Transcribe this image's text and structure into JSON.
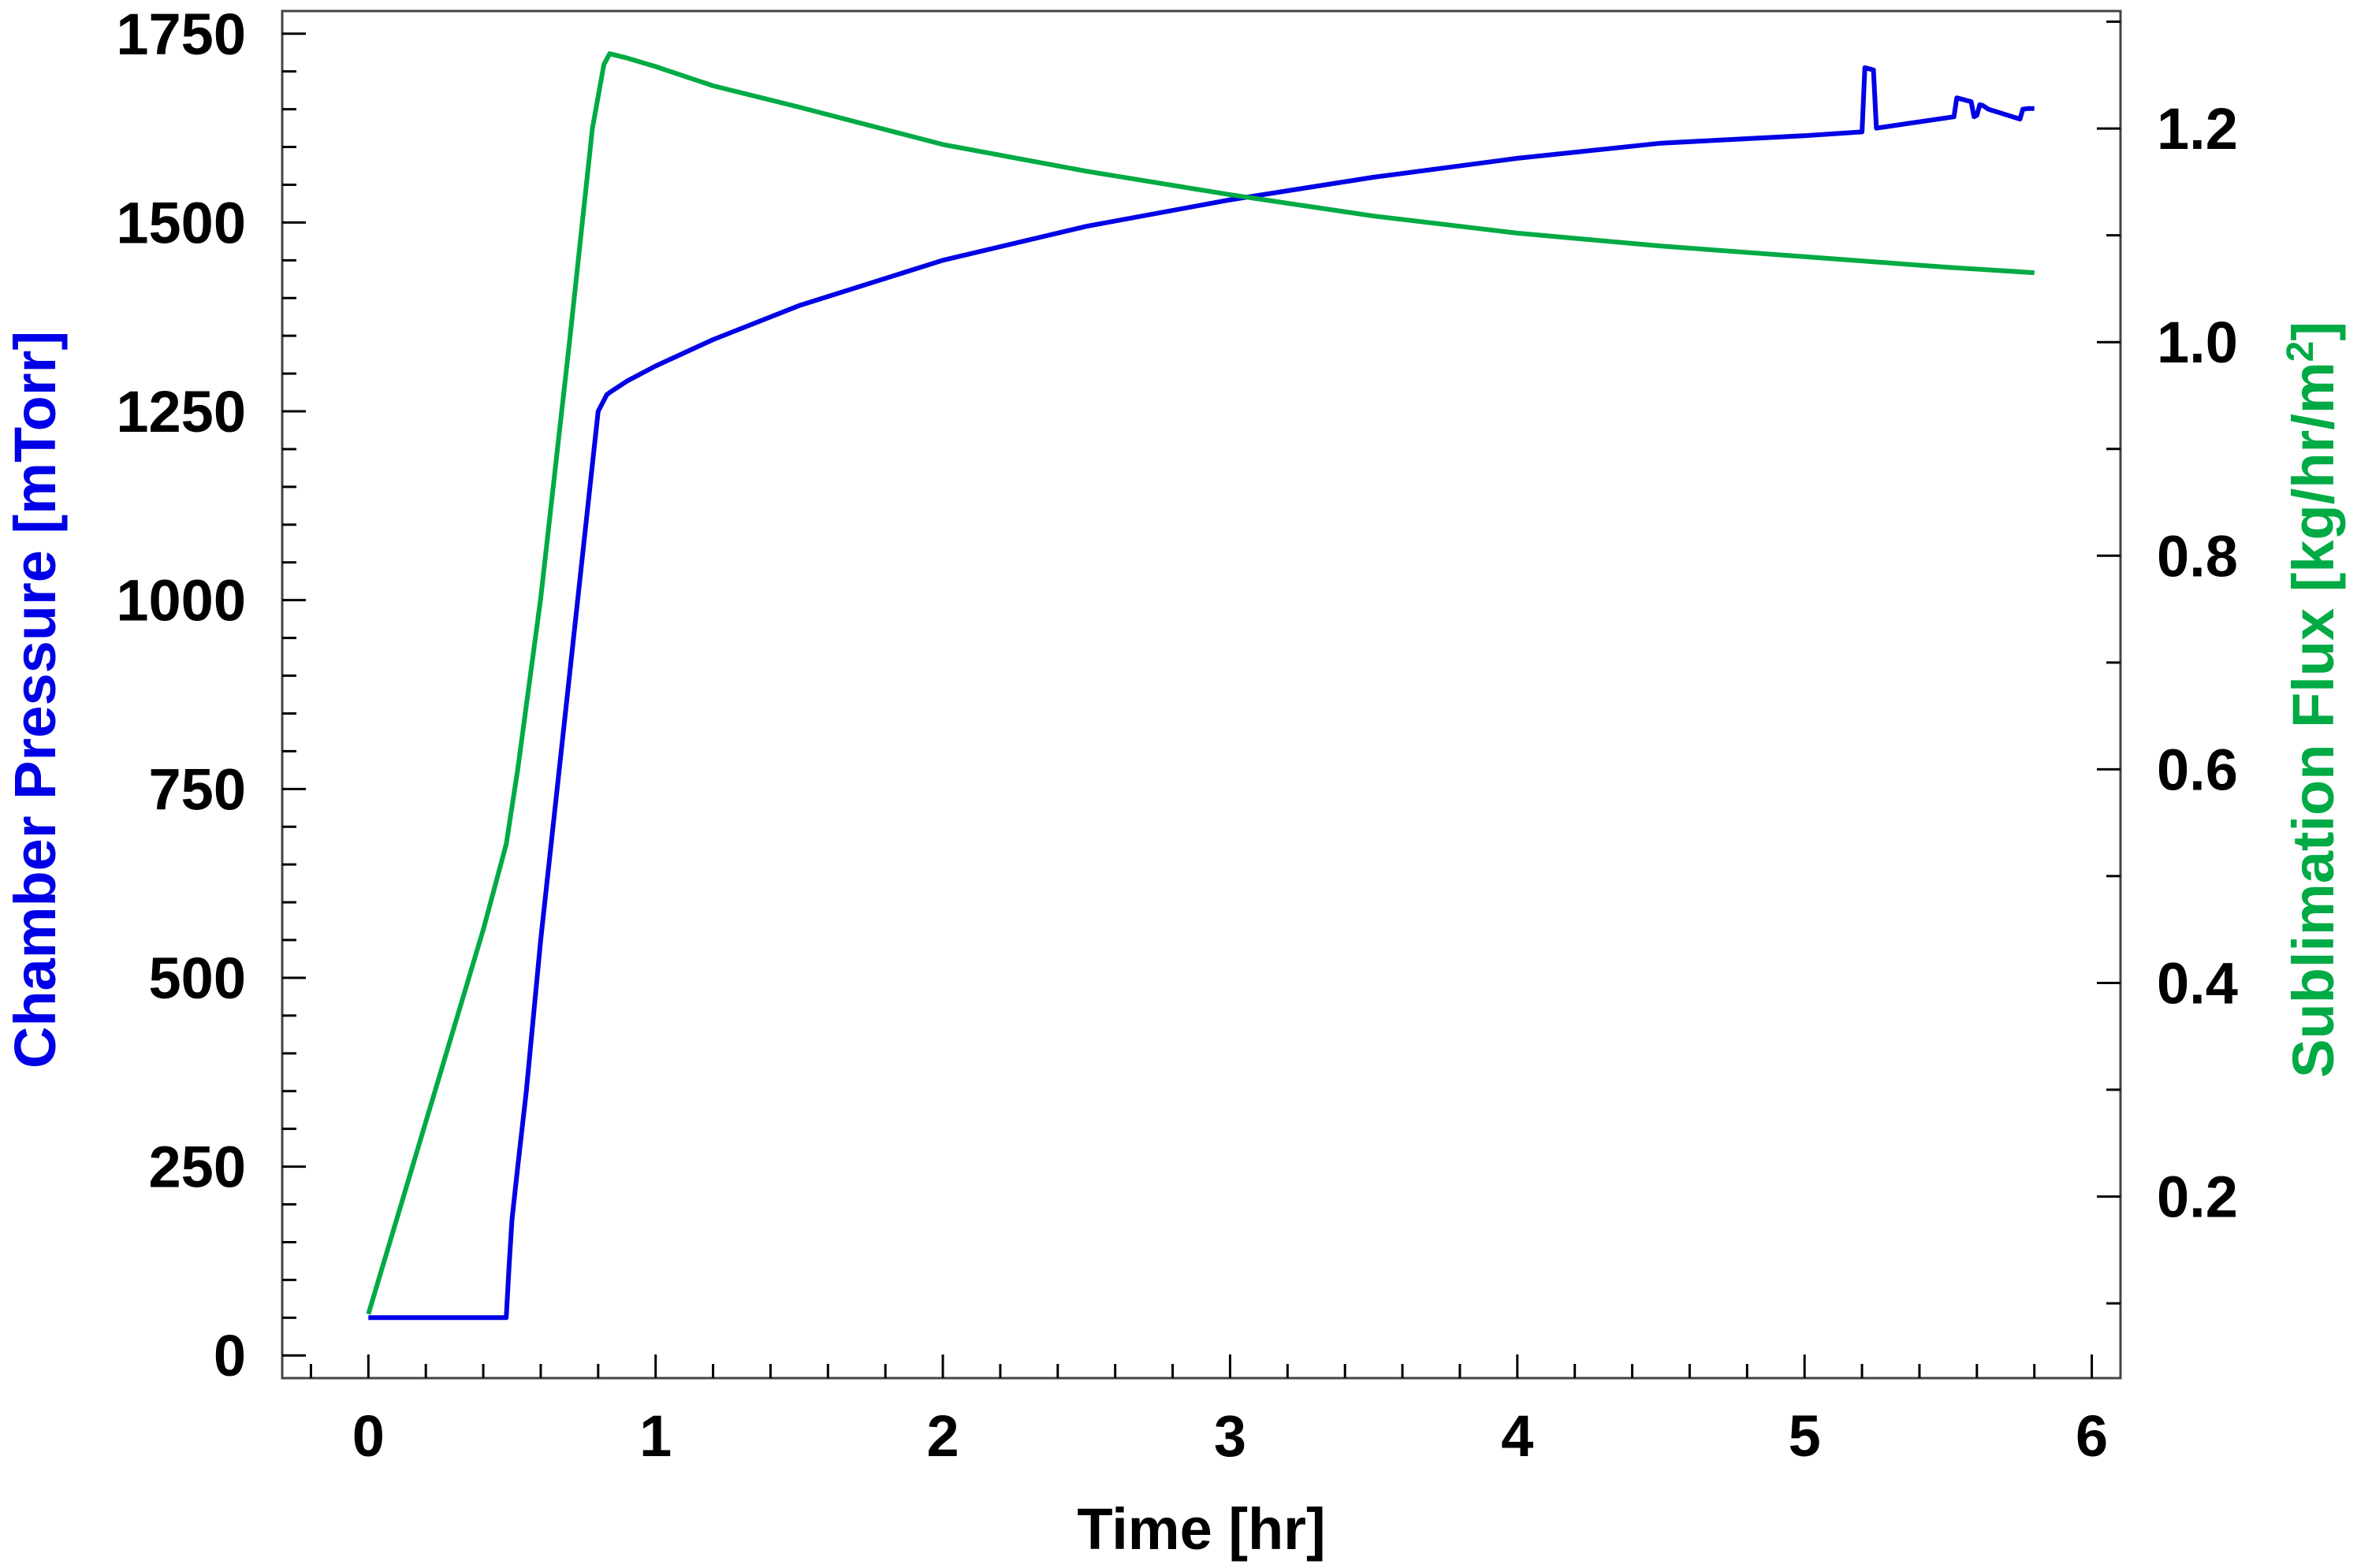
{
  "chart_data": {
    "type": "line",
    "xlabel": "Time [hr]",
    "ylabel": "Chamber Pressure [mTorr]",
    "y2label": "Sublimation Flux [kg/hr/m",
    "y2label_sup": "2",
    "y2label_close": "]",
    "xlim": [
      -0.3,
      6.1
    ],
    "ylim": [
      -30,
      1780
    ],
    "y2lim": [
      0.03,
      1.31
    ],
    "x_ticks": [
      0,
      1,
      2,
      3,
      4,
      5,
      6
    ],
    "y_ticks": [
      0,
      250,
      500,
      750,
      1000,
      1250,
      1500,
      1750
    ],
    "y2_ticks": [
      0.2,
      0.4,
      0.6,
      0.8,
      1.0,
      1.2
    ],
    "x_tick_labels": [
      "0",
      "1",
      "2",
      "3",
      "4",
      "5",
      "6"
    ],
    "y_tick_labels": [
      "0",
      "250",
      "500",
      "750",
      "1000",
      "1250",
      "1500",
      "1750"
    ],
    "y2_tick_labels": [
      "0.2",
      "0.4",
      "0.6",
      "0.8",
      "1.0",
      "1.2"
    ],
    "grid": false,
    "series": [
      {
        "axis": "left",
        "color": "#0000e6",
        "x": [
          0,
          0.48,
          0.49,
          0.5,
          0.52,
          0.55,
          0.6,
          0.7,
          0.8,
          0.83,
          0.84,
          0.9,
          1.0,
          1.2,
          1.5,
          2.0,
          2.5,
          3.0,
          3.5,
          4.0,
          4.5,
          5.0,
          5.2,
          5.21,
          5.24,
          5.25,
          5.52,
          5.53,
          5.58,
          5.59,
          5.6,
          5.61,
          5.62,
          5.64,
          5.75,
          5.76,
          5.78,
          5.8
        ],
        "y": [
          50,
          50,
          120,
          180,
          250,
          350,
          550,
          900,
          1250,
          1272,
          1275,
          1290,
          1310,
          1345,
          1390,
          1450,
          1495,
          1530,
          1560,
          1585,
          1605,
          1615,
          1620,
          1705,
          1702,
          1625,
          1640,
          1665,
          1660,
          1640,
          1642,
          1656,
          1655,
          1650,
          1637,
          1650,
          1651,
          1651
        ]
      },
      {
        "axis": "right",
        "color": "#00aa44",
        "x": [
          0,
          0.2,
          0.4,
          0.48,
          0.52,
          0.6,
          0.7,
          0.78,
          0.82,
          0.84,
          0.9,
          1.0,
          1.2,
          1.5,
          2.0,
          2.5,
          3.0,
          3.5,
          4.0,
          4.5,
          5.0,
          5.5,
          5.8
        ],
        "y": [
          0.09,
          0.27,
          0.45,
          0.53,
          0.6,
          0.76,
          1.0,
          1.2,
          1.26,
          1.27,
          1.266,
          1.258,
          1.24,
          1.22,
          1.185,
          1.16,
          1.138,
          1.118,
          1.102,
          1.09,
          1.08,
          1.07,
          1.065
        ]
      }
    ]
  }
}
